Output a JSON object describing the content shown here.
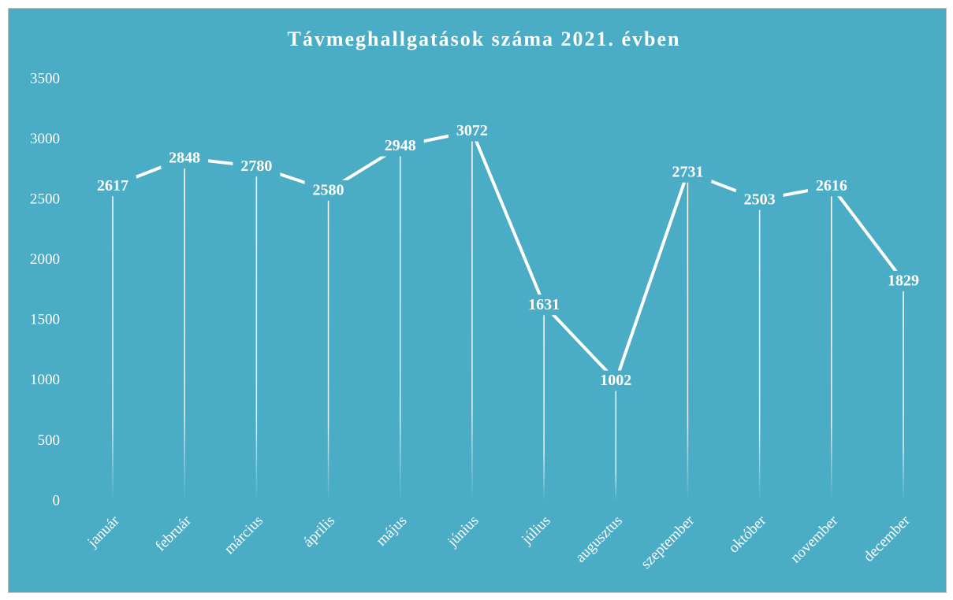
{
  "chart_data": {
    "type": "line",
    "title": "Távmeghallgatások száma 2021. évben",
    "categories": [
      "január",
      "február",
      "március",
      "április",
      "május",
      "június",
      "július",
      "augusztus",
      "szeptember",
      "október",
      "november",
      "december"
    ],
    "values": [
      2617,
      2848,
      2780,
      2580,
      2948,
      3072,
      1631,
      1002,
      2731,
      2503,
      2616,
      1829
    ],
    "color": "#ffffff",
    "ylim": [
      0,
      3500
    ],
    "yticks": [
      0,
      500,
      1000,
      1500,
      2000,
      2500,
      3000,
      3500
    ],
    "grid": false,
    "drop_lines": true
  }
}
